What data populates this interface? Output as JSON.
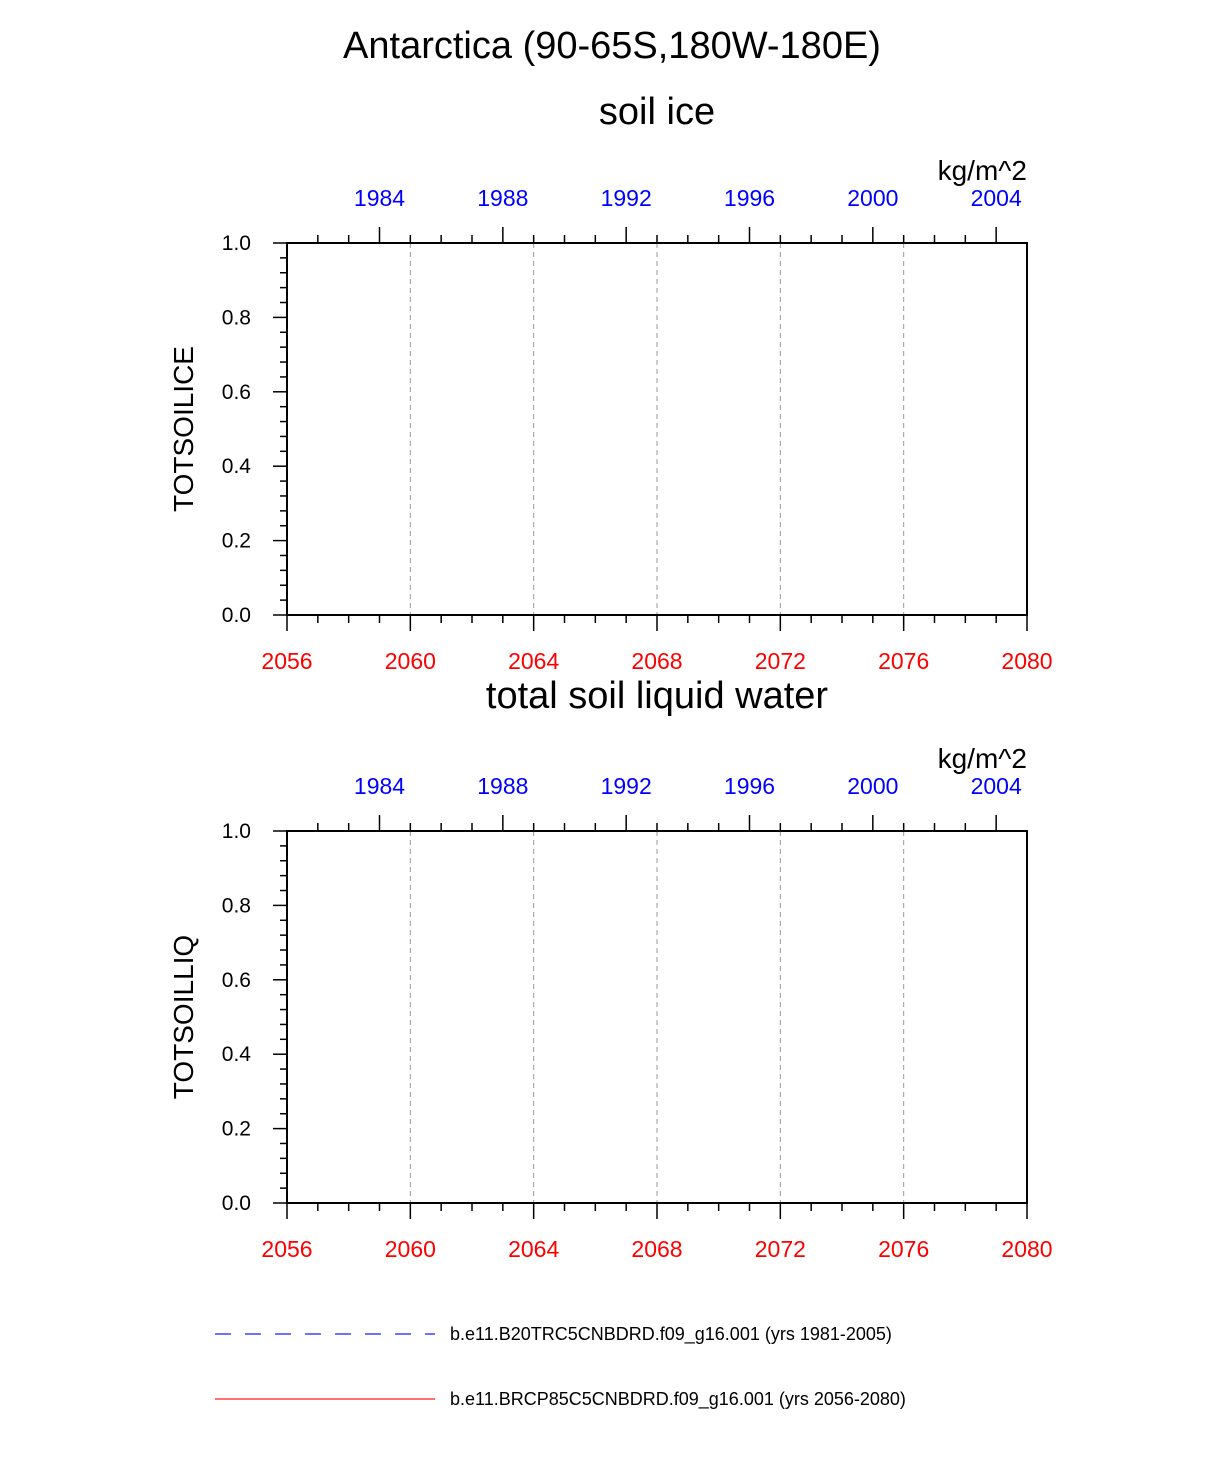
{
  "figure": {
    "title": "Antarctica (90-65S,180W-180E)"
  },
  "colors": {
    "axis": "#000000",
    "grid": "#9a9a9a",
    "top_axis_labels": "#0000ff",
    "bottom_axis_labels": "#ff0000",
    "historical_line": "#0000ff",
    "future_line": "#ff0000"
  },
  "chart_data": [
    {
      "type": "line",
      "title": "soil ice",
      "units": "kg/m^2",
      "ylabel": "TOTSOILICE",
      "ylim": [
        0.0,
        1.0
      ],
      "y_ticks": [
        "0.0",
        "0.2",
        "0.4",
        "0.6",
        "0.8",
        "1.0"
      ],
      "x_bottom": {
        "range": [
          2056,
          2080
        ],
        "ticks": [
          "2056",
          "2060",
          "2064",
          "2068",
          "2072",
          "2076",
          "2080"
        ]
      },
      "x_top": {
        "range": [
          1981,
          2005
        ],
        "ticks": [
          "1984",
          "1988",
          "1992",
          "1996",
          "2000",
          "2004"
        ]
      },
      "grid": "vertical dashed",
      "series": []
    },
    {
      "type": "line",
      "title": "total soil liquid water",
      "units": "kg/m^2",
      "ylabel": "TOTSOILLIQ",
      "ylim": [
        0.0,
        1.0
      ],
      "y_ticks": [
        "0.0",
        "0.2",
        "0.4",
        "0.6",
        "0.8",
        "1.0"
      ],
      "x_bottom": {
        "range": [
          2056,
          2080
        ],
        "ticks": [
          "2056",
          "2060",
          "2064",
          "2068",
          "2072",
          "2076",
          "2080"
        ]
      },
      "x_top": {
        "range": [
          1981,
          2005
        ],
        "ticks": [
          "1984",
          "1988",
          "1992",
          "1996",
          "2000",
          "2004"
        ]
      },
      "grid": "vertical dashed",
      "series": []
    }
  ],
  "legend": {
    "placement": "bottom",
    "items": [
      {
        "label": "b.e11.B20TRC5CNBDRD.f09_g16.001 (yrs 1981-2005)",
        "style": "dashed",
        "color": "#0000ff"
      },
      {
        "label": "b.e11.BRCP85C5CNBDRD.f09_g16.001 (yrs 2056-2080)",
        "style": "solid",
        "color": "#ff0000"
      }
    ]
  }
}
